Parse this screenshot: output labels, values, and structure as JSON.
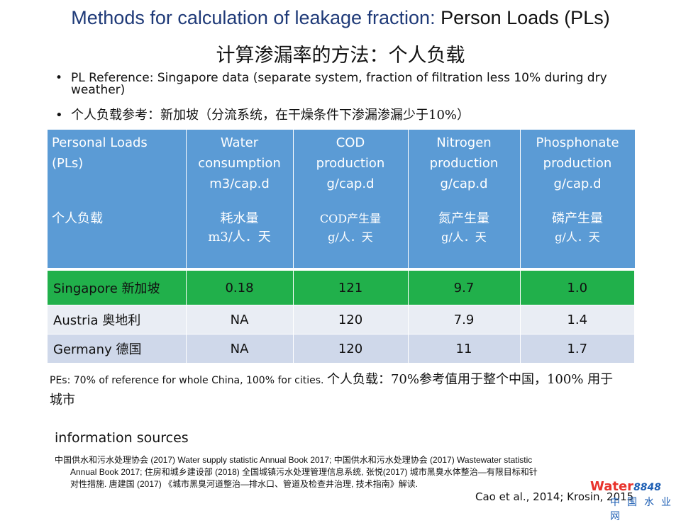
{
  "title": {
    "part1": "Methods for calculation of leakage fraction:",
    "part2": " Person Loads (PLs)"
  },
  "subtitle": "计算渗漏率的方法：个人负载",
  "bullets": [
    "PL Reference: Singapore data (separate system, fraction of filtration less 10% during dry weather)",
    "个人负载参考：新加坡（分流系统，在干燥条件下渗漏渗漏少于10%）"
  ],
  "table": {
    "headers": [
      {
        "en": [
          "Personal Loads",
          "(PLs)"
        ],
        "cn": [
          "个人负载"
        ]
      },
      {
        "en": [
          "Water",
          "consumption",
          "m3/cap.d"
        ],
        "cn": [
          "耗水量",
          "m3/人．天"
        ]
      },
      {
        "en": [
          "COD",
          "production",
          "g/cap.d"
        ],
        "cn": [
          "COD产生量",
          "g/人．天"
        ]
      },
      {
        "en": [
          "Nitrogen",
          "production",
          "g/cap.d"
        ],
        "cn": [
          "氮产生量",
          "g/人．天"
        ]
      },
      {
        "en": [
          "Phosphonate",
          "production",
          "g/cap.d"
        ],
        "cn": [
          "磷产生量",
          "g/人．天"
        ]
      }
    ],
    "rows": [
      [
        "Singapore 新加坡",
        "0.18",
        "121",
        "9.7",
        "1.0"
      ],
      [
        "Austria 奥地利",
        "NA",
        "120",
        "7.9",
        "1.4"
      ],
      [
        "Germany 德国",
        "NA",
        "120",
        "11",
        "1.7"
      ]
    ],
    "colors": {
      "header": "#5b9bd5",
      "highlight": "#21b04b"
    }
  },
  "pes": {
    "en": "PEs: 70% of reference for whole China, 100% for cities.",
    "cn": "个人负载：70%参考值用于整个中国，100% 用于城市"
  },
  "info_heading": "information sources",
  "references": [
    "中国供水和污水处理协会 (2017) Water supply statistic Annual Book 2017; 中国供水和污水处理协会 (2017) Wastewater statistic",
    "Annual Book 2017; 住房和城乡建设部 (2018) 全国城镇污水处理管理信息系统, 张悦(2017) 城市黑臭水体整治—有限目标和针",
    "对性措施. 唐建国 (2017) 《城市黑臭河道整治—排水口、管道及检查井治理, 技术指南》解读."
  ],
  "citation": "Cao et al., 2014; Krosin, 2015",
  "watermark": {
    "brand": "Water",
    "num": "8848",
    "cn": "中国水业网"
  }
}
